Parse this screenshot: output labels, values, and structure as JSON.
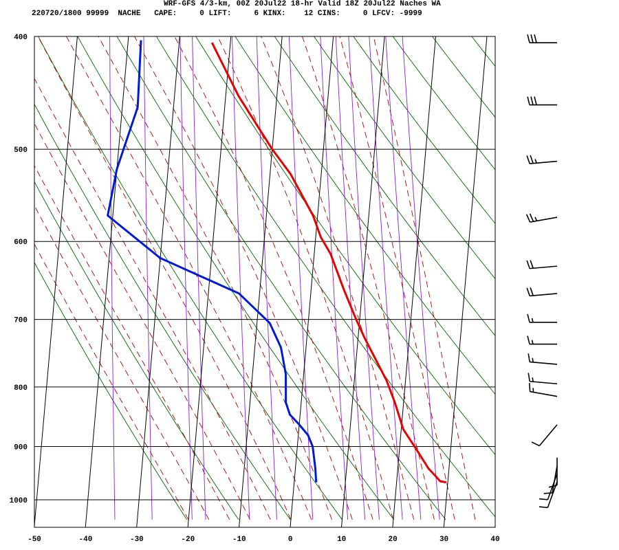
{
  "header": {
    "title": "WRF-GFS 4/3-km, 00Z 20Jul22 18-hr Valid 18Z 20Jul22 Naches WA",
    "info": "220720/1800 99999  NACHE   CAPE:     0 LIFT:     6 KINX:    12 CINS:     0 LFCV: -9999"
  },
  "colors": {
    "temperature": "#e60000",
    "dewpoint": "#0019d9",
    "isotherm": "#000000",
    "dry_adiabat": "#006600",
    "moist_adiabat": "#b30000",
    "mixing_ratio": "#8a1fd1",
    "wind_barb": "#000000"
  },
  "chart_data": {
    "type": "skew-t log-p sounding",
    "xlim": [
      -50,
      40
    ],
    "ylim": [
      1040,
      400
    ],
    "x_ticks": [
      -50,
      -40,
      -30,
      -20,
      -10,
      0,
      10,
      20,
      30,
      40
    ],
    "y_ticks": [
      400,
      500,
      600,
      700,
      800,
      900,
      1000
    ],
    "y_scale": "log",
    "grid": true,
    "series": [
      {
        "key": "temperature",
        "points": [
          {
            "p": 966,
            "t": 29.7
          },
          {
            "p": 964,
            "t": 28.5
          },
          {
            "p": 955,
            "t": 27.6
          },
          {
            "p": 940,
            "t": 26.0
          },
          {
            "p": 905,
            "t": 23.3
          },
          {
            "p": 870,
            "t": 20.4
          },
          {
            "p": 825,
            "t": 18.3
          },
          {
            "p": 790,
            "t": 16.3
          },
          {
            "p": 755,
            "t": 13.6
          },
          {
            "p": 725,
            "t": 11.2
          },
          {
            "p": 700,
            "t": 9.3
          },
          {
            "p": 660,
            "t": 6.4
          },
          {
            "p": 615,
            "t": 3.2
          },
          {
            "p": 595,
            "t": 1.0
          },
          {
            "p": 570,
            "t": -0.9
          },
          {
            "p": 525,
            "t": -6.0
          },
          {
            "p": 500,
            "t": -10.0
          },
          {
            "p": 450,
            "t": -17.5
          },
          {
            "p": 405,
            "t": -23.6
          }
        ]
      },
      {
        "key": "dewpoint",
        "points": [
          {
            "p": 966,
            "t": 4.3
          },
          {
            "p": 940,
            "t": 3.9
          },
          {
            "p": 900,
            "t": 3.0
          },
          {
            "p": 880,
            "t": 1.9
          },
          {
            "p": 860,
            "t": -0.2
          },
          {
            "p": 845,
            "t": -2.0
          },
          {
            "p": 825,
            "t": -3.0
          },
          {
            "p": 780,
            "t": -3.5
          },
          {
            "p": 740,
            "t": -4.9
          },
          {
            "p": 705,
            "t": -7.5
          },
          {
            "p": 665,
            "t": -14.0
          },
          {
            "p": 620,
            "t": -30.0
          },
          {
            "p": 570,
            "t": -41.0
          },
          {
            "p": 520,
            "t": -40.0
          },
          {
            "p": 460,
            "t": -37.0
          },
          {
            "p": 403,
            "t": -37.5
          }
        ]
      }
    ],
    "wind_barbs": [
      {
        "p": 405,
        "dir": 270,
        "spd": 30
      },
      {
        "p": 458,
        "dir": 270,
        "spd": 30
      },
      {
        "p": 512,
        "dir": 265,
        "spd": 25
      },
      {
        "p": 572,
        "dir": 260,
        "spd": 25
      },
      {
        "p": 630,
        "dir": 265,
        "spd": 20
      },
      {
        "p": 665,
        "dir": 265,
        "spd": 20
      },
      {
        "p": 704,
        "dir": 270,
        "spd": 15
      },
      {
        "p": 735,
        "dir": 270,
        "spd": 15
      },
      {
        "p": 765,
        "dir": 275,
        "spd": 15
      },
      {
        "p": 795,
        "dir": 275,
        "spd": 15
      },
      {
        "p": 815,
        "dir": 280,
        "spd": 15
      },
      {
        "p": 862,
        "dir": 220,
        "spd": 10
      },
      {
        "p": 920,
        "dir": 180,
        "spd": 10
      },
      {
        "p": 935,
        "dir": 190,
        "spd": 10
      },
      {
        "p": 950,
        "dir": 200,
        "spd": 10
      },
      {
        "p": 965,
        "dir": 200,
        "spd": 10
      }
    ]
  }
}
